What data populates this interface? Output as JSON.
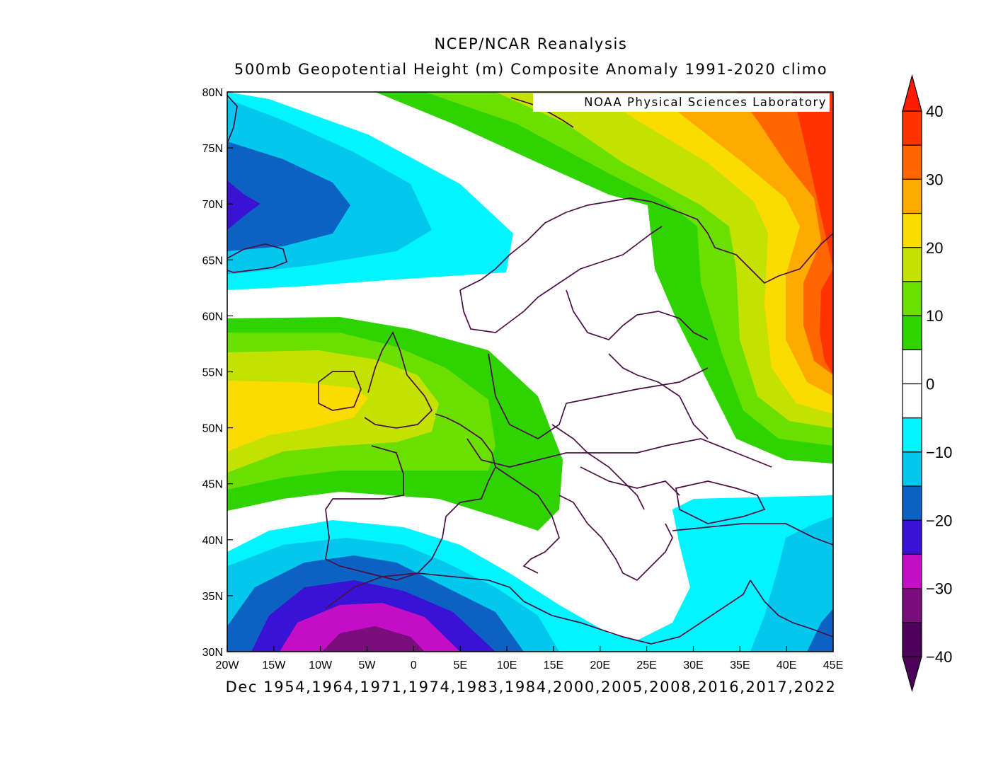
{
  "header": {
    "title": "NCEP/NCAR Reanalysis",
    "subtitle": "500mb Geopotential Height (m) Composite Anomaly 1991-2020 climo"
  },
  "credit": "NOAA Physical Sciences Laboratory",
  "footer": {
    "caption": "Dec 1954,1964,1971,1974,1983,1984,2000,2005,2008,2016,2017,2022"
  },
  "map": {
    "lon_range": [
      -20,
      45
    ],
    "lat_range": [
      30,
      80
    ],
    "lon_ticks": [
      "20W",
      "15W",
      "10W",
      "5W",
      "0",
      "5E",
      "10E",
      "15E",
      "20E",
      "25E",
      "30E",
      "35E",
      "40E",
      "45E"
    ],
    "lat_ticks": [
      "30N",
      "35N",
      "40N",
      "45N",
      "50N",
      "55N",
      "60N",
      "65N",
      "70N",
      "75N",
      "80N"
    ],
    "coastline_color": "#4a1045"
  },
  "colorbar": {
    "labels": [
      "40",
      "30",
      "20",
      "10",
      "0",
      "−10",
      "−20",
      "−30",
      "−40"
    ],
    "levels": [
      -40,
      -35,
      -30,
      -25,
      -20,
      -15,
      -10,
      -5,
      5,
      10,
      15,
      20,
      25,
      30,
      35,
      40
    ],
    "colors": {
      "below_-35": "#4d0059",
      "-35_-30": "#790d7c",
      "-30_-25": "#c40ec5",
      "-25_-20": "#3a12d6",
      "-20_-15": "#0c62c2",
      "-15_-10": "#03c7ed",
      "-10_-5": "#00f5ff",
      "-5_5": "#ffffff",
      "5_10": "#2fd300",
      "10_15": "#6bdf00",
      "15_20": "#c3e200",
      "20_25": "#fadc00",
      "25_30": "#ffaa00",
      "30_35": "#ff6600",
      "35_40": "#ff3300",
      "above_40": "#ff1a00"
    }
  }
}
